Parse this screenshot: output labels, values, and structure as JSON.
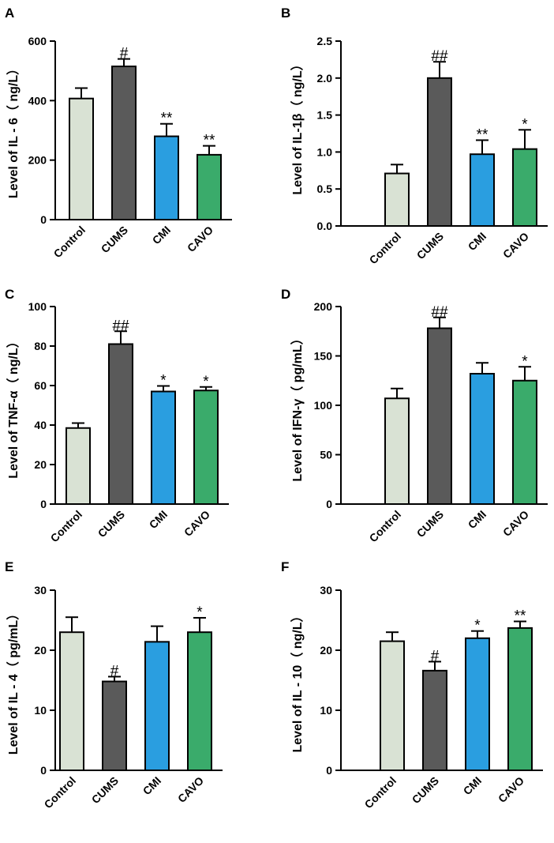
{
  "chart_data": [
    {
      "type": "bar",
      "panel": "A",
      "ylabel": "Level of IL - 6（ ng/L）",
      "ylim": [
        0,
        600
      ],
      "yticks": [
        0,
        200,
        400,
        600
      ],
      "categories": [
        "Control",
        "CUMS",
        "CMI",
        "CAVO"
      ],
      "values": [
        407,
        515,
        280,
        218
      ],
      "errors": [
        35,
        25,
        42,
        30
      ],
      "significance": [
        "",
        "#",
        "**",
        "**"
      ]
    },
    {
      "type": "bar",
      "panel": "B",
      "ylabel": "Level of IL-1β（ ng/L）",
      "ylim": [
        0,
        2.5
      ],
      "yticks": [
        0.0,
        0.5,
        1.0,
        1.5,
        2.0,
        2.5
      ],
      "categories": [
        "Control",
        "CUMS",
        "CMI",
        "CAVO"
      ],
      "values": [
        0.71,
        2.0,
        0.97,
        1.04
      ],
      "errors": [
        0.12,
        0.22,
        0.19,
        0.26
      ],
      "significance": [
        "",
        "##",
        "**",
        "*"
      ]
    },
    {
      "type": "bar",
      "panel": "C",
      "ylabel": "Level of TNF-α（ ng/L）",
      "ylim": [
        0,
        100
      ],
      "yticks": [
        0,
        20,
        40,
        60,
        80,
        100
      ],
      "categories": [
        "Control",
        "CUMS",
        "CMI",
        "CAVO"
      ],
      "values": [
        38.5,
        81,
        57,
        57.5
      ],
      "errors": [
        2.5,
        6.5,
        2.8,
        1.8
      ],
      "significance": [
        "",
        "##",
        "*",
        "*"
      ]
    },
    {
      "type": "bar",
      "panel": "D",
      "ylabel": "Level of IFN-γ（ pg/mL）",
      "ylim": [
        0,
        200
      ],
      "yticks": [
        0,
        50,
        100,
        150,
        200
      ],
      "categories": [
        "Control",
        "CUMS",
        "CMI",
        "CAVO"
      ],
      "values": [
        107,
        178,
        132,
        125
      ],
      "errors": [
        10,
        11,
        11,
        14
      ],
      "significance": [
        "",
        "##",
        "",
        "*"
      ]
    },
    {
      "type": "bar",
      "panel": "E",
      "ylabel": "Level of IL - 4（ pg/mL）",
      "ylim": [
        0,
        30
      ],
      "yticks": [
        0,
        10,
        20,
        30
      ],
      "categories": [
        "Control",
        "CUMS",
        "CMI",
        "CAVO"
      ],
      "values": [
        23,
        14.8,
        21.4,
        23
      ],
      "errors": [
        2.5,
        0.8,
        2.6,
        2.4
      ],
      "significance": [
        "",
        "#",
        "",
        "*"
      ]
    },
    {
      "type": "bar",
      "panel": "F",
      "ylabel": "Level of IL - 10（ ng/L）",
      "ylim": [
        0,
        30
      ],
      "yticks": [
        0,
        10,
        20,
        30
      ],
      "categories": [
        "Control",
        "CUMS",
        "CMI",
        "CAVO"
      ],
      "values": [
        21.5,
        16.6,
        22,
        23.7
      ],
      "errors": [
        1.5,
        1.5,
        1.2,
        1.1
      ],
      "significance": [
        "",
        "#",
        "*",
        "**"
      ]
    }
  ],
  "colors": [
    "#d9e2d4",
    "#5a5a5a",
    "#2a9ee0",
    "#3aab6b"
  ]
}
